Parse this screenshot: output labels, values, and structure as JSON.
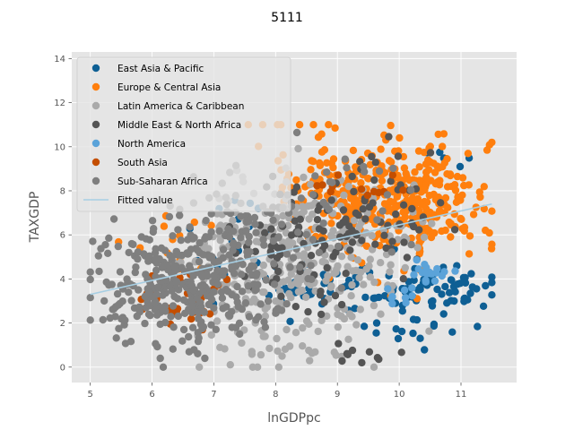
{
  "chart_data": {
    "type": "scatter",
    "title": "5111",
    "xlabel": "lnGDPpc",
    "ylabel": "TAXGDP",
    "xlim": [
      4.7,
      11.9
    ],
    "ylim": [
      -0.7,
      14.3
    ],
    "x_ticks": [
      5,
      6,
      7,
      8,
      9,
      10,
      11
    ],
    "y_ticks": [
      0,
      2,
      4,
      6,
      8,
      10,
      12,
      14
    ],
    "grid": true,
    "legend_position": "top-left",
    "series": [
      {
        "name": "East Asia & Pacific",
        "color": "#0e5f94",
        "clusters": [
          {
            "cx": 10.5,
            "cy": 3.6,
            "sx": 0.55,
            "sy": 0.55,
            "n": 70
          },
          {
            "cx": 8.8,
            "cy": 3.7,
            "sx": 0.6,
            "sy": 0.6,
            "n": 40
          },
          {
            "cx": 10.2,
            "cy": 1.6,
            "sx": 0.5,
            "sy": 0.3,
            "n": 15
          },
          {
            "cx": 10.7,
            "cy": 9.4,
            "sx": 0.2,
            "sy": 0.2,
            "n": 6
          },
          {
            "cx": 7.2,
            "cy": 5.5,
            "sx": 0.6,
            "sy": 1.2,
            "n": 20
          }
        ]
      },
      {
        "name": "Europe & Central Asia",
        "color": "#ff7f0e",
        "clusters": [
          {
            "cx": 10.3,
            "cy": 7.5,
            "sx": 0.6,
            "sy": 1.3,
            "n": 260
          },
          {
            "cx": 9.3,
            "cy": 7.8,
            "sx": 0.6,
            "sy": 1.2,
            "n": 110
          },
          {
            "cx": 8.4,
            "cy": 9.2,
            "sx": 0.5,
            "sy": 1.4,
            "n": 35
          },
          {
            "cx": 6.3,
            "cy": 5.4,
            "sx": 0.5,
            "sy": 0.8,
            "n": 15
          }
        ]
      },
      {
        "name": "Latin America & Caribbean",
        "color": "#aaaaaa",
        "clusters": [
          {
            "cx": 7.8,
            "cy": 4.5,
            "sx": 0.7,
            "sy": 1.8,
            "n": 200
          },
          {
            "cx": 9.0,
            "cy": 5.0,
            "sx": 0.7,
            "sy": 1.8,
            "n": 150
          },
          {
            "cx": 8.3,
            "cy": 0.7,
            "sx": 0.4,
            "sy": 0.2,
            "n": 15
          }
        ]
      },
      {
        "name": "Middle East & North Africa",
        "color": "#555555",
        "clusters": [
          {
            "cx": 8.3,
            "cy": 5.5,
            "sx": 0.6,
            "sy": 1.5,
            "n": 70
          },
          {
            "cx": 9.6,
            "cy": 6.8,
            "sx": 0.5,
            "sy": 1.3,
            "n": 60
          },
          {
            "cx": 9.4,
            "cy": 0.6,
            "sx": 0.3,
            "sy": 0.2,
            "n": 10
          }
        ]
      },
      {
        "name": "North America",
        "color": "#5ba3d9",
        "clusters": [
          {
            "cx": 10.6,
            "cy": 4.3,
            "sx": 0.2,
            "sy": 0.3,
            "n": 18
          },
          {
            "cx": 10.0,
            "cy": 3.3,
            "sx": 0.15,
            "sy": 0.2,
            "n": 8
          }
        ]
      },
      {
        "name": "South Asia",
        "color": "#c44e00",
        "clusters": [
          {
            "cx": 6.5,
            "cy": 3.1,
            "sx": 0.4,
            "sy": 0.6,
            "n": 30
          },
          {
            "cx": 9.2,
            "cy": 8.2,
            "sx": 0.5,
            "sy": 0.6,
            "n": 12
          }
        ]
      },
      {
        "name": "Sub-Saharan Africa",
        "color": "#7f7f7f",
        "clusters": [
          {
            "cx": 6.5,
            "cy": 3.8,
            "sx": 0.7,
            "sy": 1.3,
            "n": 280
          },
          {
            "cx": 7.5,
            "cy": 5.3,
            "sx": 0.6,
            "sy": 1.6,
            "n": 100
          },
          {
            "cx": 5.6,
            "cy": 2.5,
            "sx": 0.3,
            "sy": 0.6,
            "n": 25
          },
          {
            "cx": 9.0,
            "cy": 7.5,
            "sx": 0.6,
            "sy": 1.4,
            "n": 30
          }
        ]
      }
    ],
    "fitted_line": {
      "name": "Fitted value",
      "color": "#a6cee3",
      "x": [
        5.0,
        11.5
      ],
      "y": [
        3.3,
        7.4
      ]
    }
  }
}
